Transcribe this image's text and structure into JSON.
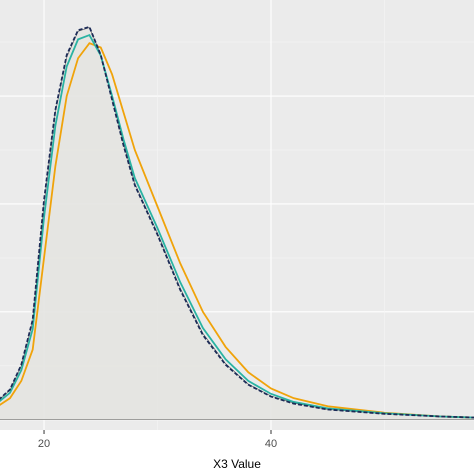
{
  "chart_data": {
    "type": "density",
    "x_label": "X3 Value",
    "x": [
      16,
      17,
      18,
      19,
      20,
      21,
      22,
      23,
      24,
      25,
      26,
      27,
      28,
      30,
      32,
      34,
      36,
      38,
      40,
      42,
      45,
      50,
      55,
      58
    ],
    "area": {
      "color": "#e4e4e1",
      "values": [
        0.0036,
        0.0055,
        0.01,
        0.0182,
        0.04,
        0.057,
        0.0672,
        0.072,
        0.0727,
        0.0677,
        0.0595,
        0.0512,
        0.0438,
        0.0346,
        0.0244,
        0.016,
        0.0104,
        0.0066,
        0.0044,
        0.0031,
        0.0019,
        0.0011,
        0.0006,
        0.0004
      ]
    },
    "series": [
      {
        "color": "#f0a30a",
        "values": [
          0.0026,
          0.004,
          0.0072,
          0.013,
          0.03,
          0.047,
          0.06,
          0.067,
          0.0698,
          0.069,
          0.064,
          0.057,
          0.05,
          0.0395,
          0.029,
          0.02,
          0.0135,
          0.0088,
          0.0058,
          0.004,
          0.0025,
          0.0013,
          0.0006,
          0.0004
        ]
      },
      {
        "color": "#2ab3a3",
        "values": [
          0.0033,
          0.005,
          0.0092,
          0.0168,
          0.0375,
          0.0545,
          0.0655,
          0.0705,
          0.0713,
          0.0675,
          0.06,
          0.052,
          0.0448,
          0.0355,
          0.0255,
          0.017,
          0.0112,
          0.0072,
          0.0048,
          0.0033,
          0.0021,
          0.0012,
          0.0006,
          0.0004
        ]
      },
      {
        "color": "#1c2b57",
        "dashed": true,
        "values": [
          0.0037,
          0.0056,
          0.0102,
          0.0185,
          0.0407,
          0.0574,
          0.0676,
          0.0722,
          0.0728,
          0.0676,
          0.0593,
          0.0509,
          0.0435,
          0.0343,
          0.0241,
          0.0157,
          0.0102,
          0.0065,
          0.0043,
          0.003,
          0.0019,
          0.0011,
          0.0006,
          0.0004
        ]
      }
    ],
    "xlim": [
      16.12,
      57.89
    ],
    "xticks": [
      20,
      40
    ],
    "xminor": [
      30,
      50
    ],
    "ylim": [
      -0.0019,
      0.0778
    ],
    "yticks": [
      0,
      0.02,
      0.04,
      0.06
    ],
    "yminor": [
      0.01,
      0.03,
      0.05,
      0.07
    ],
    "grid": true
  }
}
